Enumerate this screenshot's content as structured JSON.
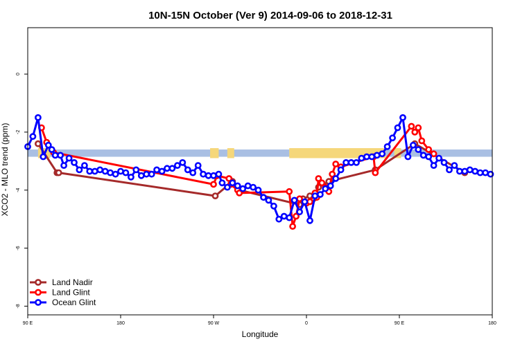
{
  "chart_data": {
    "type": "line",
    "title": "10N-15N October (Ver 9)   2014-09-06 to 2018-12-31",
    "xlabel": "Longitude",
    "ylabel": "XCO2 - MLO trend (ppm)",
    "xlim": [
      -90,
      180
    ],
    "ylim": [
      -8.3,
      1.6
    ],
    "x_ticks": [
      {
        "value": -90,
        "label": "90 E"
      },
      {
        "value": -36,
        "label": "180"
      },
      {
        "value": 18,
        "label": "90 W"
      },
      {
        "value": 72,
        "label": "0"
      },
      {
        "value": 126,
        "label": "90 E"
      },
      {
        "value": 180,
        "label": "180"
      }
    ],
    "y_ticks": [
      0,
      -2,
      -4,
      -6,
      -8
    ],
    "land_band": {
      "y": [
        -2.85,
        -2.6
      ],
      "ocean_color": "#a9bfe3",
      "land_color": "#f5d77a",
      "land_segments": [
        [
          -84,
          -77
        ],
        [
          16,
          21
        ],
        [
          26,
          30
        ],
        [
          62,
          118
        ],
        [
          123,
          127
        ]
      ]
    },
    "series": [
      {
        "name": "Land Nadir",
        "color": "#a52a2a",
        "points": [
          [
            -84,
            -2.4
          ],
          [
            -73,
            -3.4
          ],
          [
            -72,
            -3.4
          ],
          [
            19,
            -4.2
          ],
          [
            29,
            -3.7
          ],
          [
            33,
            -4.0
          ],
          [
            68,
            -4.5
          ],
          [
            70,
            -4.3
          ],
          [
            74,
            -4.2
          ],
          [
            76,
            -4.3
          ],
          [
            79,
            -3.9
          ],
          [
            85,
            -3.7
          ],
          [
            112,
            -3.3
          ],
          [
            135,
            -2.4
          ],
          [
            164,
            -3.4
          ]
        ]
      },
      {
        "name": "Land Glint",
        "color": "#ff0000",
        "points": [
          [
            -82,
            -1.85
          ],
          [
            -79,
            -2.35
          ],
          [
            -75,
            -2.7
          ],
          [
            18,
            -3.8
          ],
          [
            20,
            -3.5
          ],
          [
            27,
            -3.6
          ],
          [
            28,
            -3.8
          ],
          [
            32,
            -4.0
          ],
          [
            33,
            -4.1
          ],
          [
            62,
            -4.05
          ],
          [
            64,
            -5.25
          ],
          [
            66,
            -4.9
          ],
          [
            68,
            -4.3
          ],
          [
            72,
            -4.45
          ],
          [
            74,
            -4.4
          ],
          [
            77,
            -4.1
          ],
          [
            78,
            -4.25
          ],
          [
            79,
            -3.6
          ],
          [
            81,
            -3.75
          ],
          [
            83,
            -3.9
          ],
          [
            85,
            -4.05
          ],
          [
            87,
            -3.45
          ],
          [
            89,
            -3.1
          ],
          [
            92,
            -3.2
          ],
          [
            111,
            -2.85
          ],
          [
            112,
            -3.4
          ],
          [
            133,
            -1.8
          ],
          [
            135,
            -2.0
          ],
          [
            137,
            -1.85
          ],
          [
            139,
            -2.3
          ],
          [
            143,
            -2.6
          ],
          [
            146,
            -2.75
          ]
        ]
      },
      {
        "name": "Ocean Glint",
        "color": "#0000ff",
        "points": [
          [
            -90,
            -2.5
          ],
          [
            -87,
            -2.15
          ],
          [
            -84,
            -1.5
          ],
          [
            -81,
            -2.85
          ],
          [
            -78,
            -2.45
          ],
          [
            -76,
            -2.6
          ],
          [
            -74,
            -2.8
          ],
          [
            -71,
            -2.8
          ],
          [
            -69,
            -3.15
          ],
          [
            -66,
            -2.9
          ],
          [
            -63,
            -3.05
          ],
          [
            -60,
            -3.3
          ],
          [
            -57,
            -3.15
          ],
          [
            -54,
            -3.35
          ],
          [
            -51,
            -3.35
          ],
          [
            -48,
            -3.3
          ],
          [
            -45,
            -3.35
          ],
          [
            -42,
            -3.4
          ],
          [
            -39,
            -3.45
          ],
          [
            -36,
            -3.35
          ],
          [
            -33,
            -3.4
          ],
          [
            -30,
            -3.55
          ],
          [
            -27,
            -3.3
          ],
          [
            -24,
            -3.5
          ],
          [
            -21,
            -3.45
          ],
          [
            -18,
            -3.45
          ],
          [
            -15,
            -3.3
          ],
          [
            -12,
            -3.35
          ],
          [
            -9,
            -3.25
          ],
          [
            -6,
            -3.25
          ],
          [
            -3,
            -3.15
          ],
          [
            0,
            -3.05
          ],
          [
            3,
            -3.3
          ],
          [
            6,
            -3.4
          ],
          [
            9,
            -3.15
          ],
          [
            12,
            -3.45
          ],
          [
            15,
            -3.5
          ],
          [
            18,
            -3.5
          ],
          [
            21,
            -3.45
          ],
          [
            23,
            -3.75
          ],
          [
            26,
            -3.9
          ],
          [
            29,
            -3.75
          ],
          [
            32,
            -3.85
          ],
          [
            35,
            -3.95
          ],
          [
            38,
            -3.85
          ],
          [
            41,
            -3.9
          ],
          [
            44,
            -4.0
          ],
          [
            47,
            -4.25
          ],
          [
            50,
            -4.35
          ],
          [
            53,
            -4.55
          ],
          [
            56,
            -5.0
          ],
          [
            59,
            -4.9
          ],
          [
            62,
            -4.95
          ],
          [
            65,
            -4.35
          ],
          [
            68,
            -4.75
          ],
          [
            71,
            -4.4
          ],
          [
            74,
            -5.05
          ],
          [
            77,
            -4.2
          ],
          [
            80,
            -4.15
          ],
          [
            83,
            -3.95
          ],
          [
            86,
            -3.85
          ],
          [
            89,
            -3.6
          ],
          [
            92,
            -3.3
          ],
          [
            95,
            -3.05
          ],
          [
            98,
            -3.05
          ],
          [
            101,
            -3.05
          ],
          [
            104,
            -2.9
          ],
          [
            107,
            -2.85
          ],
          [
            110,
            -2.85
          ],
          [
            113,
            -2.8
          ],
          [
            116,
            -2.75
          ],
          [
            119,
            -2.5
          ],
          [
            122,
            -2.2
          ],
          [
            125,
            -1.85
          ],
          [
            128,
            -1.5
          ],
          [
            131,
            -2.85
          ],
          [
            134,
            -2.45
          ],
          [
            137,
            -2.6
          ],
          [
            140,
            -2.8
          ],
          [
            143,
            -2.85
          ],
          [
            146,
            -3.15
          ],
          [
            149,
            -2.9
          ],
          [
            152,
            -3.05
          ],
          [
            155,
            -3.3
          ],
          [
            158,
            -3.15
          ],
          [
            161,
            -3.35
          ],
          [
            164,
            -3.35
          ],
          [
            167,
            -3.3
          ],
          [
            170,
            -3.35
          ],
          [
            173,
            -3.4
          ],
          [
            176,
            -3.4
          ],
          [
            179,
            -3.45
          ]
        ]
      }
    ],
    "legend": {
      "placement": "bottom-left",
      "entries": [
        "Land Nadir",
        "Land Glint",
        "Ocean Glint"
      ]
    },
    "grid": false
  }
}
